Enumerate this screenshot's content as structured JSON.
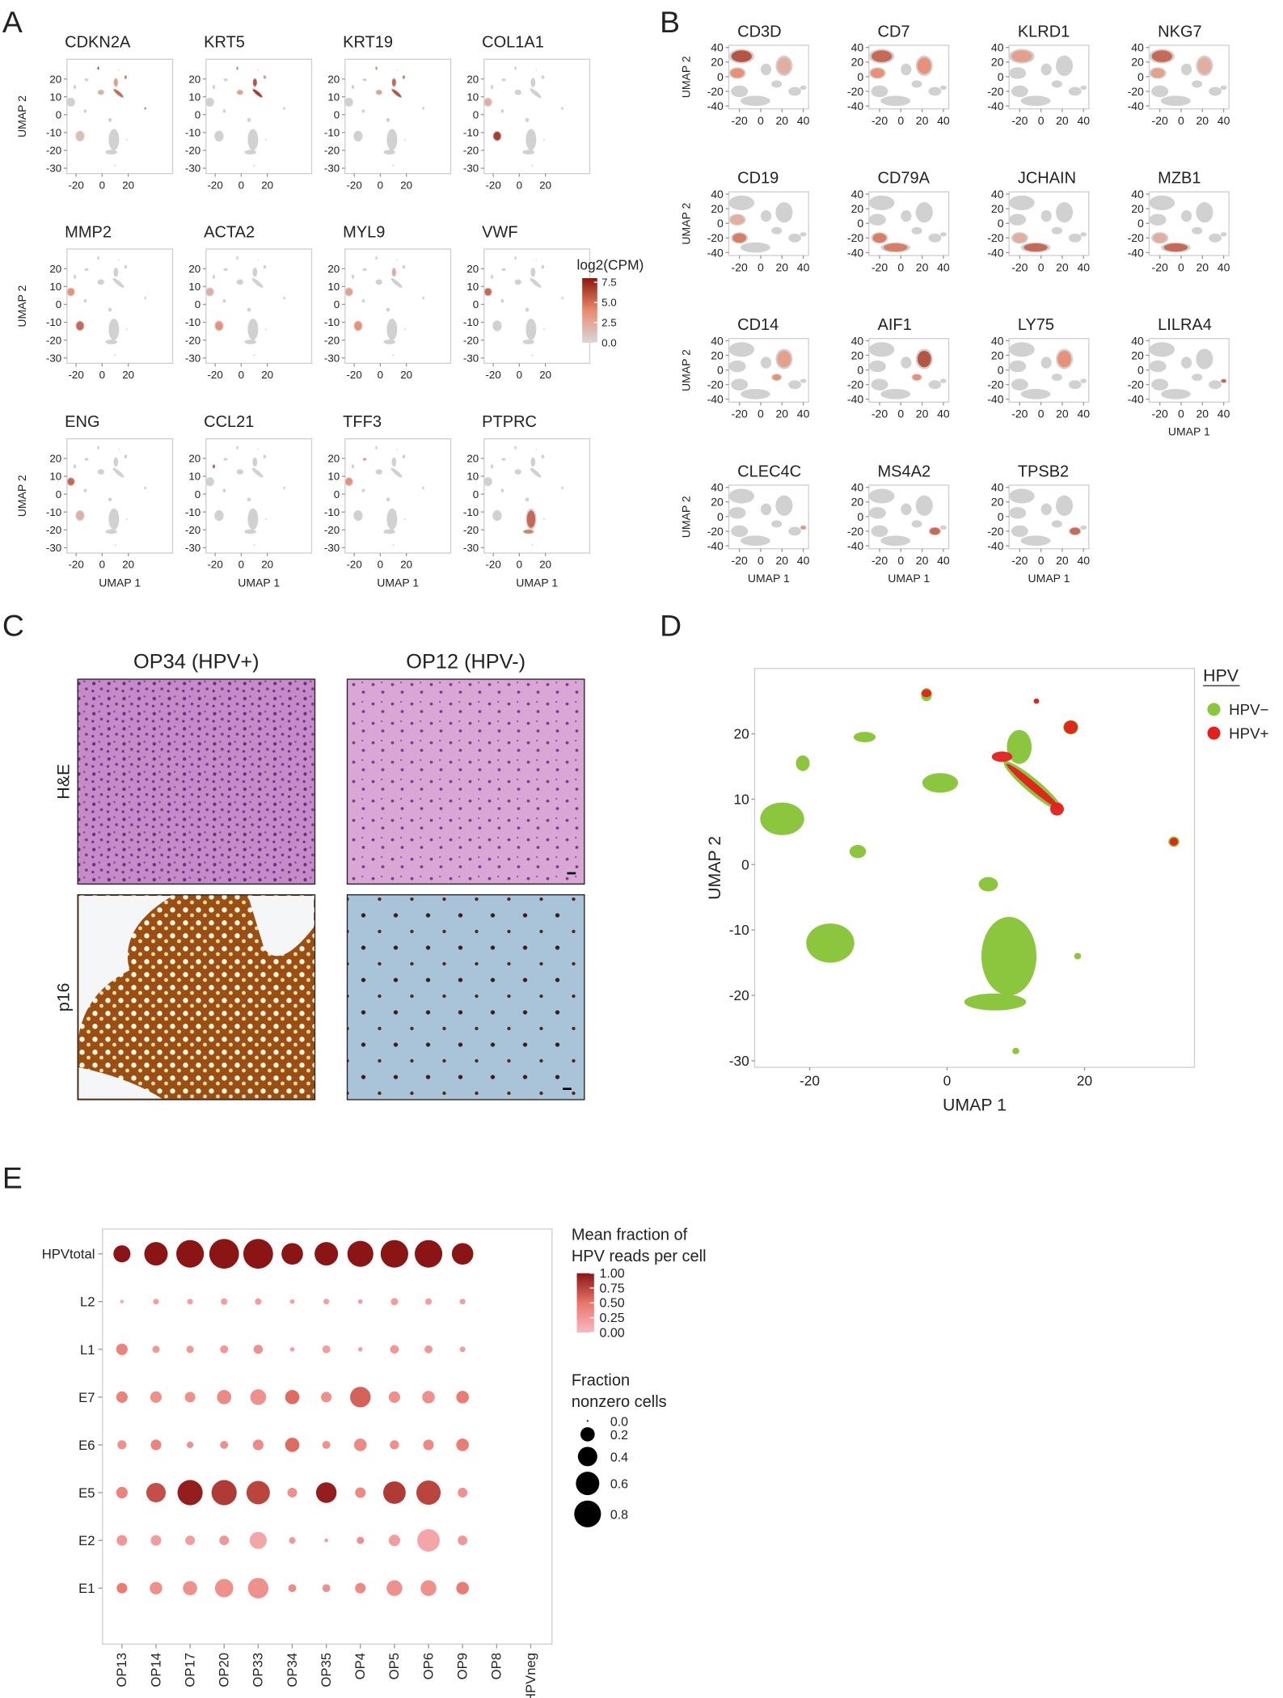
{
  "panel_labels": [
    "A",
    "B",
    "C",
    "D",
    "E"
  ],
  "chart_data": [
    {
      "type": "umap_grid",
      "panel": 0,
      "titles": [
        "CDKN2A",
        "KRT5",
        "KRT19",
        "COL1A1",
        "MMP2",
        "ACTA2",
        "MYL9",
        "VWF",
        "ENG",
        "CCL21",
        "TFF3",
        "PTPRC"
      ],
      "xlabel": "UMAP 1",
      "ylabel": "UMAP 2",
      "xlim": [
        -27,
        54
      ],
      "ylim": [
        -33,
        31
      ],
      "xticks": [
        -20,
        0,
        20
      ],
      "yticks": [
        20,
        10,
        0,
        -10,
        -20,
        -30
      ],
      "colorbar": {
        "title": "log2(CPM)",
        "lim": [
          0,
          8
        ],
        "ticks": [
          7.5,
          {
            "value": 5,
            "label": "5.0"
          },
          2.5,
          {
            "value": 0,
            "label": "0.0"
          }
        ]
      }
    },
    {
      "type": "umap_grid",
      "panel": 1,
      "titles": [
        "CD3D",
        "CD7",
        "KLRD1",
        "NKG7",
        "CD19",
        "CD79A",
        "JCHAIN",
        "MZB1",
        "CD14",
        "AIF1",
        "LY75",
        "LILRA4",
        "CLEC4C",
        "MS4A2",
        "TPSB2"
      ],
      "xlabel": "UMAP 1",
      "ylabel": "UMAP 2",
      "xlim": [
        -30,
        45
      ],
      "ylim": [
        -44,
        43
      ],
      "xticks": [
        -20,
        0,
        20,
        40
      ],
      "yticks": [
        40,
        20,
        0,
        -20,
        -40
      ]
    },
    {
      "type": "umap",
      "panel": 3,
      "xlabel": "UMAP 1",
      "ylabel": "UMAP 2",
      "xlim": [
        -28,
        36
      ],
      "ylim": [
        -31,
        30
      ],
      "xticks": [
        -20,
        0,
        20
      ],
      "yticks": [
        20,
        10,
        0,
        -10,
        -20,
        -30
      ],
      "legend_title": "HPV",
      "series": [
        {
          "name": "HPV−",
          "color": "#8cc63f"
        },
        {
          "name": "HPV+",
          "color": "#e3201b"
        }
      ]
    },
    {
      "type": "dotplot",
      "panel": 4,
      "categories": [
        "OP13",
        "OP14",
        "OP17",
        "OP20",
        "OP33",
        "OP34",
        "OP35",
        "OP4",
        "OP5",
        "OP6",
        "OP9",
        "OP8",
        "HPVneg"
      ],
      "series": [
        {
          "name": "HPVtotal",
          "mean_fraction": [
            1,
            1,
            1,
            1,
            1,
            1,
            1,
            1,
            1,
            1,
            1,
            null,
            null
          ],
          "fraction_nonzero": [
            0.3,
            0.6,
            0.85,
            1.0,
            1.0,
            0.5,
            0.6,
            0.75,
            0.85,
            0.85,
            0.5,
            null,
            null
          ]
        },
        {
          "name": "L2",
          "mean_fraction": [
            0.1,
            0.2,
            0.2,
            0.2,
            0.2,
            0.2,
            0.2,
            0.2,
            0.2,
            0.2,
            0.2,
            null,
            null
          ],
          "fraction_nonzero": [
            0.005,
            0.02,
            0.02,
            0.03,
            0.03,
            0.01,
            0.02,
            0.01,
            0.04,
            0.03,
            0.02,
            null,
            null
          ]
        },
        {
          "name": "L1",
          "mean_fraction": [
            0.4,
            0.25,
            0.25,
            0.25,
            0.3,
            0.2,
            0.2,
            0.2,
            0.25,
            0.25,
            0.2,
            null,
            null
          ],
          "fraction_nonzero": [
            0.12,
            0.04,
            0.04,
            0.05,
            0.07,
            0.01,
            0.05,
            0.01,
            0.06,
            0.05,
            0.02,
            null,
            null
          ]
        },
        {
          "name": "E7",
          "mean_fraction": [
            0.4,
            0.3,
            0.3,
            0.35,
            0.3,
            0.55,
            0.3,
            0.6,
            0.3,
            0.3,
            0.45,
            null,
            null
          ],
          "fraction_nonzero": [
            0.12,
            0.12,
            0.1,
            0.2,
            0.25,
            0.2,
            0.1,
            0.45,
            0.12,
            0.15,
            0.15,
            null,
            null
          ]
        },
        {
          "name": "E6",
          "mean_fraction": [
            0.3,
            0.4,
            0.3,
            0.3,
            0.35,
            0.55,
            0.3,
            0.35,
            0.3,
            0.35,
            0.45,
            null,
            null
          ],
          "fraction_nonzero": [
            0.07,
            0.1,
            0.03,
            0.05,
            0.1,
            0.2,
            0.05,
            0.15,
            0.07,
            0.1,
            0.15,
            null,
            null
          ]
        },
        {
          "name": "E5",
          "mean_fraction": [
            0.4,
            0.7,
            0.95,
            0.8,
            0.75,
            0.3,
            0.95,
            0.35,
            0.8,
            0.75,
            0.3,
            null,
            null
          ],
          "fraction_nonzero": [
            0.12,
            0.4,
            0.7,
            0.7,
            0.6,
            0.08,
            0.45,
            0.1,
            0.55,
            0.65,
            0.08,
            null,
            null
          ]
        },
        {
          "name": "E2",
          "mean_fraction": [
            0.25,
            0.2,
            0.2,
            0.25,
            0.15,
            0.25,
            0.2,
            0.3,
            0.2,
            0.15,
            0.25,
            null,
            null
          ],
          "fraction_nonzero": [
            0.1,
            0.1,
            0.08,
            0.08,
            0.3,
            0.03,
            0.005,
            0.04,
            0.12,
            0.55,
            0.08,
            null,
            null
          ]
        },
        {
          "name": "E1",
          "mean_fraction": [
            0.45,
            0.3,
            0.3,
            0.3,
            0.3,
            0.35,
            0.3,
            0.35,
            0.3,
            0.3,
            0.45,
            null,
            null
          ],
          "fraction_nonzero": [
            0.1,
            0.15,
            0.2,
            0.35,
            0.45,
            0.05,
            0.05,
            0.1,
            0.25,
            0.25,
            0.15,
            null,
            null
          ]
        }
      ],
      "color_legend": {
        "title": [
          "Mean fraction of",
          "HPV reads per cell"
        ],
        "lim": [
          0,
          1
        ],
        "ticks": [
          {
            "value": 1,
            "label": "1.00"
          },
          0.75,
          {
            "value": 0.5,
            "label": "0.50"
          },
          0.25,
          {
            "value": 0,
            "label": "0.00"
          }
        ]
      },
      "size_legend": {
        "title": [
          "Fraction",
          "nonzero cells"
        ],
        "ticks": [
          {
            "value": 0,
            "label": "0.0"
          },
          0.2,
          0.4,
          0.6,
          0.8
        ]
      }
    }
  ],
  "panel_c": {
    "columns": [
      "OP34 (HPV+)",
      "OP12 (HPV-)"
    ],
    "rows": [
      "H&E",
      "p16"
    ]
  }
}
